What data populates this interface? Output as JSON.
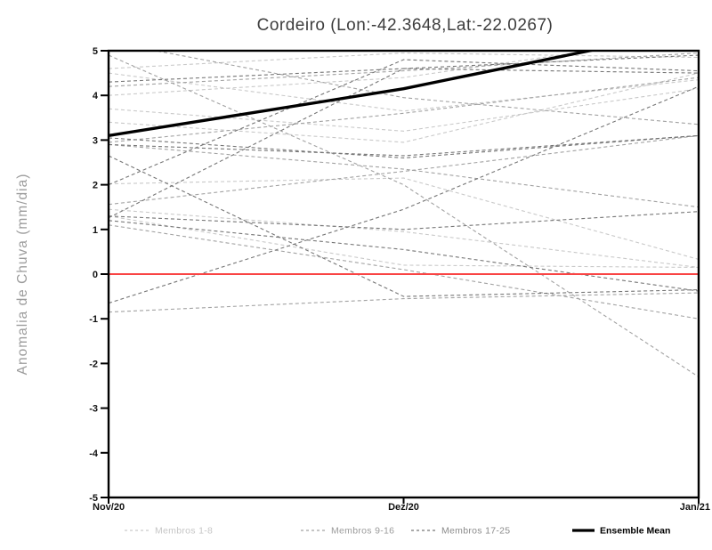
{
  "page": {
    "background": "#ffffff"
  },
  "chart_data": {
    "type": "line",
    "title": "Cordeiro (Lon:-42.3648,Lat:-22.0267)",
    "ylabel": "Anomalia de Chuva (mm/dia)",
    "xlabel": "",
    "x_tick_labels": [
      "Nov/20",
      "Dez/20",
      "Jan/21"
    ],
    "y_ticks": [
      5,
      4,
      3,
      2,
      1,
      0,
      -1,
      -2,
      -3,
      -4,
      -5
    ],
    "ylim": [
      -5,
      5
    ],
    "grid": false,
    "legend_position": "bottom",
    "axis_color": "#000000",
    "zero_line": {
      "name": "zero-anomaly-line",
      "color": "#f94444",
      "values": [
        0,
        0,
        0
      ]
    },
    "ensemble_mean": {
      "name": "Ensemble Mean",
      "color": "#000000",
      "values": [
        3.1,
        4.15,
        5.5
      ]
    },
    "groups": [
      {
        "name": "Membros 1-8",
        "color": "#c9c9c9",
        "label_color": "#c6c6c6",
        "members": [
          [
            4.6,
            4.95,
            4.85
          ],
          [
            4.5,
            3.65,
            4.35
          ],
          [
            4.0,
            4.4,
            5.35
          ],
          [
            3.7,
            3.2,
            4.15
          ],
          [
            3.4,
            2.95,
            4.5
          ],
          [
            2.02,
            2.15,
            0.33
          ],
          [
            1.45,
            0.95,
            0.15
          ],
          [
            1.3,
            0.2,
            0.15
          ]
        ]
      },
      {
        "name": "Membros 9-16",
        "color": "#a2a2a2",
        "label_color": "#9b9b9b",
        "members": [
          [
            -0.85,
            -0.55,
            -0.42
          ],
          [
            1.1,
            0.1,
            -1.0
          ],
          [
            4.9,
            2.0,
            -2.3
          ],
          [
            4.2,
            4.55,
            4.95
          ],
          [
            2.9,
            2.35,
            1.5
          ],
          [
            2.95,
            3.6,
            4.4
          ],
          [
            1.56,
            2.3,
            3.1
          ],
          [
            5.2,
            3.95,
            3.35
          ]
        ]
      },
      {
        "name": "Membros 17-25",
        "color": "#767676",
        "label_color": "#8b8b8b",
        "members": [
          [
            4.3,
            4.6,
            4.5
          ],
          [
            2.0,
            4.8,
            4.55
          ],
          [
            1.26,
            4.6,
            4.9
          ],
          [
            2.9,
            2.65,
            3.1
          ],
          [
            2.65,
            -0.5,
            -0.35
          ],
          [
            -0.65,
            1.45,
            4.2
          ],
          [
            1.3,
            1.0,
            1.4
          ],
          [
            1.2,
            0.55,
            -0.38
          ],
          [
            3.05,
            2.6,
            3.1
          ]
        ]
      }
    ],
    "legend": [
      {
        "label": "Membros 1-8",
        "style": "dashed"
      },
      {
        "label": "Membros 9-16",
        "style": "dashed"
      },
      {
        "label": "Membros 17-25",
        "style": "dashed"
      },
      {
        "label": "Ensemble Mean",
        "style": "solid"
      }
    ]
  }
}
